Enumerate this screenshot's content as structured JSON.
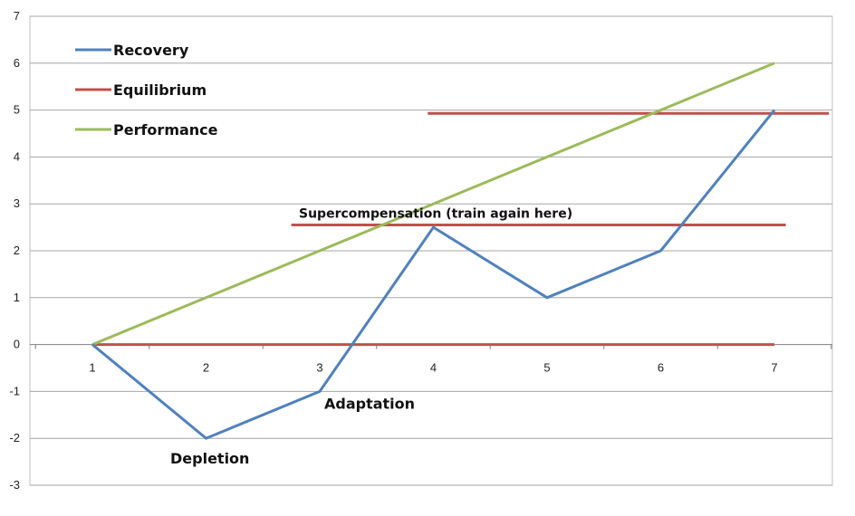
{
  "chart_data": {
    "type": "line",
    "x": [
      1,
      2,
      3,
      4,
      5,
      6,
      7
    ],
    "xlim": [
      1,
      7
    ],
    "ylim": [
      -3,
      7
    ],
    "y_ticks": [
      -3,
      -2,
      -1,
      0,
      1,
      2,
      3,
      4,
      5,
      6,
      7
    ],
    "grid": "horizontal",
    "legend_position": "top-left",
    "series": [
      {
        "name": "Recovery",
        "color": "#4f81bd",
        "values": [
          0,
          -2,
          -1,
          2.5,
          1,
          2,
          5
        ]
      },
      {
        "name": "Equilibrium",
        "color": "#c0504d",
        "values": [
          0,
          0,
          0,
          0,
          0,
          0,
          0
        ]
      },
      {
        "name": "Performance",
        "color": "#9bbb59",
        "values": [
          0,
          1,
          2,
          3,
          4,
          5,
          6
        ]
      }
    ],
    "reference_lines": [
      {
        "name": "supercompensation-line",
        "color": "#c0504d",
        "y": 2.55,
        "x_from": 2.75,
        "x_to": 7.1
      },
      {
        "name": "upper-equilibrium-line",
        "color": "#c0504d",
        "y": 4.93,
        "x_from": 3.95,
        "x_to": 7.48
      }
    ],
    "annotations": [
      {
        "text": "Depletion",
        "x": 2,
        "y": -2
      },
      {
        "text": "Adaptation",
        "x": 3,
        "y": -1
      },
      {
        "text": "Supercompensation (train again here)",
        "x": 3.3,
        "y": 2.55
      }
    ]
  }
}
